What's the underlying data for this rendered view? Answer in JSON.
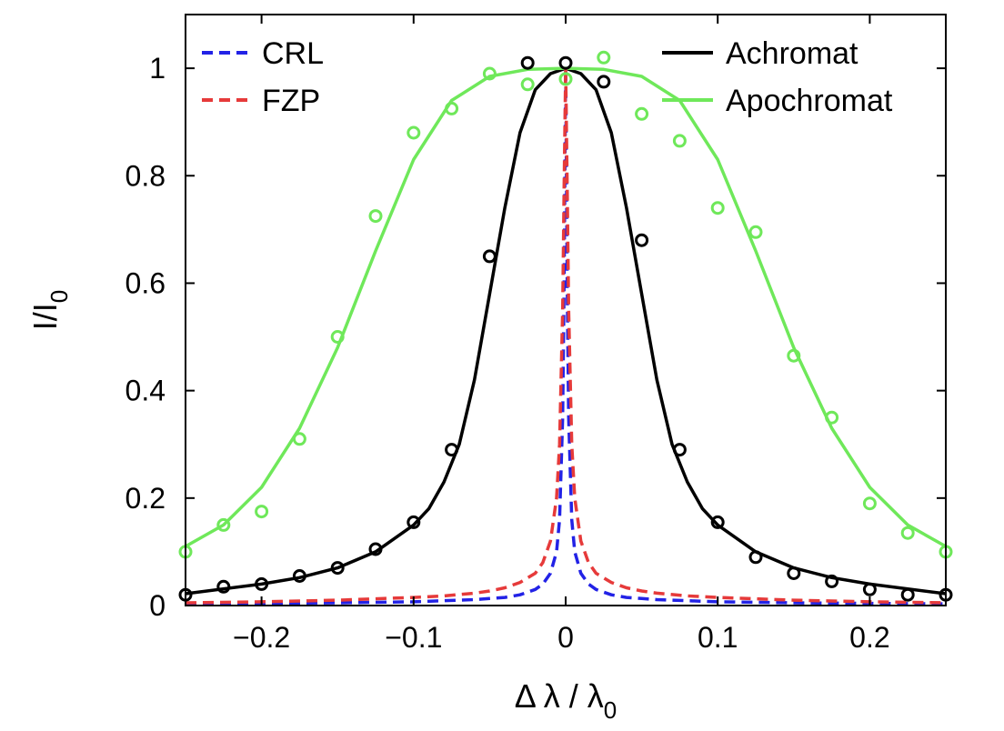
{
  "chart_data": {
    "type": "line",
    "xlabel": "Δ λ / λ0",
    "ylabel": "I/I0",
    "xlabel_parts": {
      "main": "Δ λ / λ",
      "sub": "0"
    },
    "ylabel_parts": {
      "main": "I/I",
      "sub": "0"
    },
    "xlim": [
      -0.25,
      0.25
    ],
    "ylim": [
      0,
      1.1
    ],
    "xticks": [
      -0.2,
      -0.1,
      0,
      0.1,
      0.2
    ],
    "xtick_labels": [
      "−0.2",
      "−0.1",
      "0",
      "0.1",
      "0.2"
    ],
    "yticks": [
      0,
      0.2,
      0.4,
      0.6,
      0.8,
      1
    ],
    "ytick_labels": [
      "0",
      "0.2",
      "0.4",
      "0.6",
      "0.8",
      "1"
    ],
    "grid": false,
    "legend": [
      {
        "name": "CRL",
        "color": "#2222e6",
        "style": "dashed",
        "placement": "top-left"
      },
      {
        "name": "FZP",
        "color": "#e63a3a",
        "style": "dashed",
        "placement": "top-left"
      },
      {
        "name": "Achromat",
        "color": "#000000",
        "style": "solid",
        "placement": "top-right"
      },
      {
        "name": "Apochromat",
        "color": "#6fe85a",
        "style": "solid",
        "placement": "top-right"
      }
    ],
    "series": [
      {
        "name": "CRL",
        "kind": "line",
        "color": "#2222e6",
        "style": "dashed",
        "x": [
          -0.25,
          -0.2,
          -0.15,
          -0.1,
          -0.08,
          -0.06,
          -0.05,
          -0.04,
          -0.03,
          -0.02,
          -0.015,
          -0.01,
          -0.006,
          -0.004,
          -0.002,
          -0.001,
          0,
          0.001,
          0.002,
          0.004,
          0.006,
          0.01,
          0.015,
          0.02,
          0.03,
          0.04,
          0.05,
          0.06,
          0.08,
          0.1,
          0.15,
          0.2,
          0.25
        ],
        "y": [
          0.003,
          0.004,
          0.005,
          0.007,
          0.009,
          0.011,
          0.013,
          0.015,
          0.02,
          0.03,
          0.04,
          0.06,
          0.1,
          0.16,
          0.35,
          0.6,
          1.0,
          0.6,
          0.35,
          0.16,
          0.1,
          0.06,
          0.04,
          0.03,
          0.02,
          0.015,
          0.013,
          0.011,
          0.009,
          0.007,
          0.005,
          0.004,
          0.003
        ]
      },
      {
        "name": "FZP",
        "kind": "line",
        "color": "#e63a3a",
        "style": "dashed",
        "x": [
          -0.25,
          -0.2,
          -0.15,
          -0.1,
          -0.08,
          -0.06,
          -0.05,
          -0.04,
          -0.03,
          -0.02,
          -0.015,
          -0.01,
          -0.006,
          -0.004,
          -0.002,
          -0.001,
          0,
          0.001,
          0.002,
          0.004,
          0.006,
          0.01,
          0.015,
          0.02,
          0.03,
          0.04,
          0.05,
          0.06,
          0.08,
          0.1,
          0.15,
          0.2,
          0.25
        ],
        "y": [
          0.005,
          0.007,
          0.01,
          0.015,
          0.018,
          0.023,
          0.027,
          0.033,
          0.043,
          0.06,
          0.08,
          0.12,
          0.2,
          0.3,
          0.55,
          0.78,
          1.0,
          0.78,
          0.55,
          0.3,
          0.2,
          0.12,
          0.08,
          0.06,
          0.043,
          0.033,
          0.027,
          0.023,
          0.018,
          0.015,
          0.01,
          0.007,
          0.005
        ]
      },
      {
        "name": "Achromat",
        "kind": "line",
        "color": "#000000",
        "style": "solid",
        "x": [
          -0.25,
          -0.2,
          -0.175,
          -0.15,
          -0.125,
          -0.1,
          -0.09,
          -0.08,
          -0.07,
          -0.06,
          -0.05,
          -0.04,
          -0.03,
          -0.02,
          -0.01,
          0,
          0.01,
          0.02,
          0.03,
          0.04,
          0.05,
          0.06,
          0.07,
          0.08,
          0.09,
          0.1,
          0.125,
          0.15,
          0.175,
          0.2,
          0.25
        ],
        "y": [
          0.022,
          0.04,
          0.052,
          0.07,
          0.1,
          0.15,
          0.18,
          0.23,
          0.3,
          0.42,
          0.58,
          0.74,
          0.88,
          0.96,
          0.99,
          1.0,
          0.99,
          0.96,
          0.88,
          0.74,
          0.58,
          0.42,
          0.3,
          0.23,
          0.18,
          0.15,
          0.1,
          0.07,
          0.052,
          0.04,
          0.022
        ]
      },
      {
        "name": "Apochromat",
        "kind": "line",
        "color": "#6fe85a",
        "style": "solid",
        "x": [
          -0.25,
          -0.225,
          -0.2,
          -0.175,
          -0.15,
          -0.125,
          -0.1,
          -0.075,
          -0.05,
          -0.025,
          0,
          0.025,
          0.05,
          0.075,
          0.1,
          0.125,
          0.15,
          0.175,
          0.2,
          0.225,
          0.25
        ],
        "y": [
          0.11,
          0.15,
          0.22,
          0.33,
          0.48,
          0.66,
          0.83,
          0.94,
          0.985,
          0.998,
          1.0,
          0.998,
          0.985,
          0.94,
          0.83,
          0.66,
          0.48,
          0.33,
          0.22,
          0.15,
          0.11
        ]
      },
      {
        "name": "Achromat data",
        "kind": "markers",
        "color": "#000000",
        "x": [
          -0.25,
          -0.225,
          -0.2,
          -0.175,
          -0.15,
          -0.125,
          -0.1,
          -0.075,
          -0.05,
          -0.025,
          0,
          0.025,
          0.05,
          0.075,
          0.1,
          0.125,
          0.15,
          0.175,
          0.2,
          0.225,
          0.25
        ],
        "y": [
          0.02,
          0.035,
          0.04,
          0.055,
          0.07,
          0.105,
          0.155,
          0.29,
          0.65,
          1.01,
          1.01,
          0.975,
          0.68,
          0.29,
          0.155,
          0.09,
          0.06,
          0.045,
          0.03,
          0.02,
          0.02
        ]
      },
      {
        "name": "Apochromat data",
        "kind": "markers",
        "color": "#6fe85a",
        "x": [
          -0.25,
          -0.225,
          -0.2,
          -0.175,
          -0.15,
          -0.125,
          -0.1,
          -0.075,
          -0.05,
          -0.025,
          0,
          0.025,
          0.05,
          0.075,
          0.1,
          0.125,
          0.15,
          0.175,
          0.2,
          0.225,
          0.25
        ],
        "y": [
          0.1,
          0.15,
          0.175,
          0.31,
          0.5,
          0.725,
          0.88,
          0.925,
          0.99,
          0.97,
          0.98,
          1.02,
          0.915,
          0.865,
          0.74,
          0.695,
          0.465,
          0.35,
          0.19,
          0.135,
          0.1
        ]
      }
    ]
  }
}
